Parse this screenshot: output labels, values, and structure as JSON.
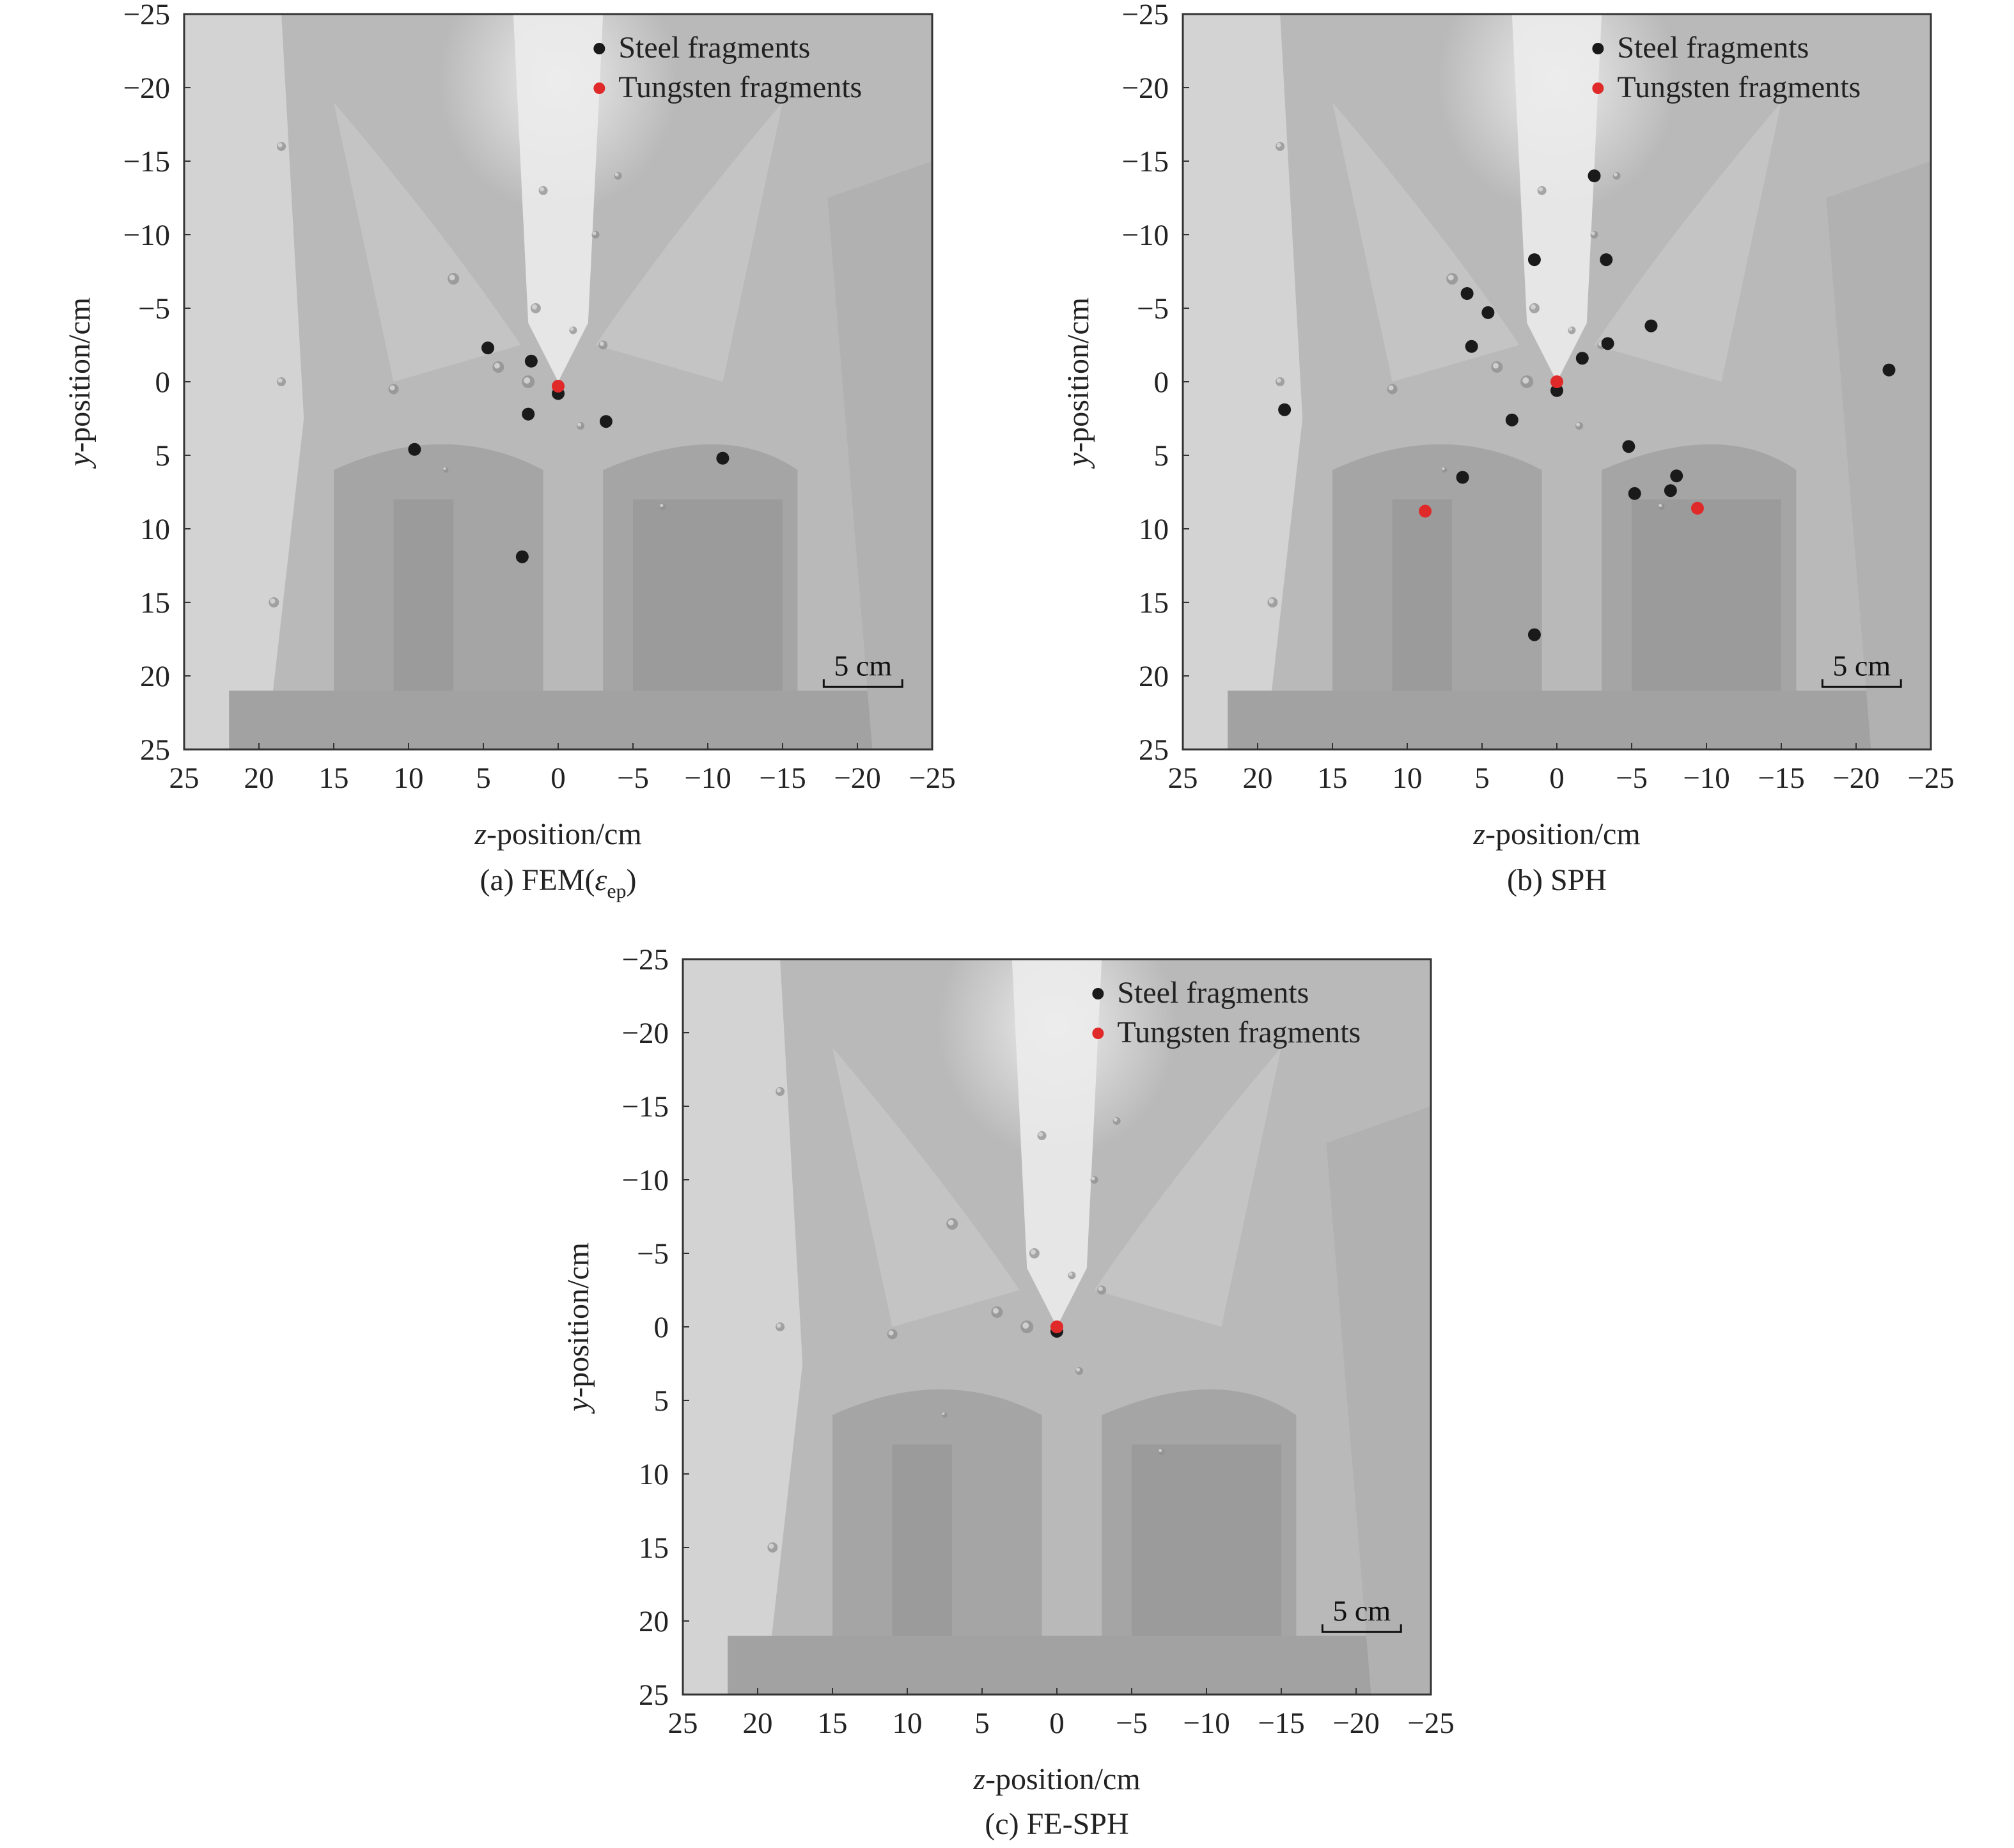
{
  "colors": {
    "steel": "#1a1a1a",
    "tungsten": "#e02a2a",
    "background": "#ffffff"
  },
  "chart_data": [
    {
      "type": "scatter",
      "caption": {
        "prefix": "(a) FEM(",
        "symbol": "ε",
        "sub": "ep",
        "suffix": ")"
      },
      "xlabel_italic": "z",
      "xlabel_rest": "-position/cm",
      "ylabel_italic": "y",
      "ylabel_rest": "-position/cm",
      "xlim": [
        25,
        -25
      ],
      "ylim": [
        -25,
        25
      ],
      "x_ticks": [
        "25",
        "20",
        "15",
        "10",
        "5",
        "0",
        "−5",
        "−10",
        "−15",
        "−20",
        "−25"
      ],
      "y_ticks": [
        "−25",
        "−20",
        "−15",
        "−10",
        "−5",
        "0",
        "5",
        "10",
        "15",
        "20",
        "25"
      ],
      "scale_bar": "5 cm",
      "series": [
        {
          "name": "Steel fragments",
          "color": "#1a1a1a",
          "points": [
            [
              4.7,
              -2.3
            ],
            [
              1.8,
              -1.4
            ],
            [
              0,
              0.8
            ],
            [
              2,
              2.2
            ],
            [
              -3.2,
              2.7
            ],
            [
              9.6,
              4.6
            ],
            [
              -11,
              5.2
            ],
            [
              2.4,
              11.9
            ]
          ]
        },
        {
          "name": "Tungsten fragments",
          "color": "#e02a2a",
          "points": [
            [
              0,
              0.3
            ]
          ]
        }
      ]
    },
    {
      "type": "scatter",
      "caption": {
        "prefix": "(b) SPH",
        "symbol": "",
        "sub": "",
        "suffix": ""
      },
      "xlabel_italic": "z",
      "xlabel_rest": "-position/cm",
      "ylabel_italic": "y",
      "ylabel_rest": "-position/cm",
      "xlim": [
        25,
        -25
      ],
      "ylim": [
        -25,
        25
      ],
      "x_ticks": [
        "25",
        "20",
        "15",
        "10",
        "5",
        "0",
        "−5",
        "−10",
        "−15",
        "−20",
        "−25"
      ],
      "y_ticks": [
        "−25",
        "−20",
        "−15",
        "−10",
        "−5",
        "0",
        "5",
        "10",
        "15",
        "20",
        "25"
      ],
      "scale_bar": "5 cm",
      "series": [
        {
          "name": "Steel fragments",
          "color": "#1a1a1a",
          "points": [
            [
              -2.5,
              -14
            ],
            [
              1.5,
              -8.3
            ],
            [
              -3.3,
              -8.3
            ],
            [
              6,
              -6
            ],
            [
              4.6,
              -4.7
            ],
            [
              -6.3,
              -3.8
            ],
            [
              5.7,
              -2.4
            ],
            [
              -3.4,
              -2.6
            ],
            [
              -1.7,
              -1.6
            ],
            [
              -22.2,
              -0.8
            ],
            [
              0,
              0.6
            ],
            [
              18.2,
              1.9
            ],
            [
              3,
              2.6
            ],
            [
              -4.8,
              4.4
            ],
            [
              6.3,
              6.5
            ],
            [
              -8,
              6.4
            ],
            [
              -5.2,
              7.6
            ],
            [
              -7.6,
              7.4
            ],
            [
              1.5,
              17.2
            ]
          ]
        },
        {
          "name": "Tungsten fragments",
          "color": "#e02a2a",
          "points": [
            [
              0,
              0
            ],
            [
              8.8,
              8.8
            ],
            [
              -9.4,
              8.6
            ]
          ]
        }
      ]
    },
    {
      "type": "scatter",
      "caption": {
        "prefix": "(c) FE-SPH",
        "symbol": "",
        "sub": "",
        "suffix": ""
      },
      "xlabel_italic": "z",
      "xlabel_rest": "-position/cm",
      "ylabel_italic": "y",
      "ylabel_rest": "-position/cm",
      "xlim": [
        25,
        -25
      ],
      "ylim": [
        -25,
        25
      ],
      "x_ticks": [
        "25",
        "20",
        "15",
        "10",
        "5",
        "0",
        "−5",
        "−10",
        "−15",
        "−20",
        "−25"
      ],
      "y_ticks": [
        "−25",
        "−20",
        "−15",
        "−10",
        "−5",
        "0",
        "5",
        "10",
        "15",
        "20",
        "25"
      ],
      "scale_bar": "5 cm",
      "series": [
        {
          "name": "Steel fragments",
          "color": "#1a1a1a",
          "points": [
            [
              0,
              0.3
            ]
          ]
        },
        {
          "name": "Tungsten fragments",
          "color": "#e02a2a",
          "points": [
            [
              0,
              0
            ]
          ]
        }
      ]
    }
  ]
}
